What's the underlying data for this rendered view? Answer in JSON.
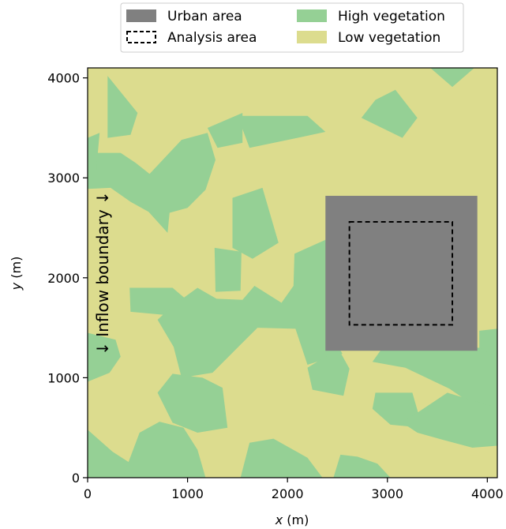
{
  "chart_data": {
    "type": "map",
    "xlabel_var": "x",
    "xlabel_unit": " (m)",
    "ylabel_var": "y",
    "ylabel_unit": " (m)",
    "xlim": [
      0,
      4100
    ],
    "ylim": [
      0,
      4100
    ],
    "xticks": [
      0,
      1000,
      2000,
      3000,
      4000
    ],
    "yticks": [
      0,
      1000,
      2000,
      3000,
      4000
    ],
    "legend": [
      {
        "label": "Urban area",
        "kind": "fill",
        "color": "#808080"
      },
      {
        "label": "High vegetation",
        "kind": "fill",
        "color": "#95d095"
      },
      {
        "label": "Analysis area",
        "kind": "dashed",
        "color": "#000000"
      },
      {
        "label": "Low vegetation",
        "kind": "fill",
        "color": "#dcdc8e"
      }
    ],
    "colors": {
      "low_vegetation": "#dcdc8e",
      "high_vegetation": "#95d095",
      "urban": "#808080"
    },
    "urban_area": {
      "x0": 2380,
      "x1": 3900,
      "y0": 1270,
      "y1": 2820
    },
    "analysis_area": {
      "x0": 2620,
      "x1": 3650,
      "y0": 1530,
      "y1": 2560
    },
    "annotation": "↓ Inflow boundary ↓",
    "high_vegetation_patches": [
      [
        [
          200,
          4020
        ],
        [
          500,
          3650
        ],
        [
          430,
          3430
        ],
        [
          200,
          3400
        ]
      ],
      [
        [
          0,
          3250
        ],
        [
          330,
          3250
        ],
        [
          480,
          3150
        ],
        [
          620,
          3040
        ],
        [
          940,
          3380
        ],
        [
          1200,
          3450
        ],
        [
          1280,
          3180
        ],
        [
          1180,
          2880
        ],
        [
          1000,
          2700
        ],
        [
          820,
          2650
        ],
        [
          800,
          2450
        ],
        [
          610,
          2660
        ],
        [
          430,
          2760
        ],
        [
          230,
          2900
        ],
        [
          0,
          2890
        ]
      ],
      [
        [
          1500,
          3620
        ],
        [
          2200,
          3620
        ],
        [
          2380,
          3460
        ],
        [
          2100,
          3400
        ],
        [
          1620,
          3300
        ]
      ],
      [
        [
          1200,
          3500
        ],
        [
          1550,
          3650
        ],
        [
          1550,
          3350
        ],
        [
          1300,
          3300
        ]
      ],
      [
        [
          2880,
          3780
        ],
        [
          3080,
          3880
        ],
        [
          3300,
          3600
        ],
        [
          3150,
          3400
        ],
        [
          2740,
          3600
        ]
      ],
      [
        [
          3430,
          4100
        ],
        [
          3870,
          4100
        ],
        [
          3650,
          3910
        ]
      ],
      [
        [
          0,
          3400
        ],
        [
          120,
          3450
        ],
        [
          80,
          3000
        ],
        [
          0,
          3080
        ]
      ],
      [
        [
          1450,
          2800
        ],
        [
          1750,
          2900
        ],
        [
          1910,
          2350
        ],
        [
          1650,
          2190
        ],
        [
          1450,
          2300
        ]
      ],
      [
        [
          1270,
          2300
        ],
        [
          1540,
          2260
        ],
        [
          1530,
          1870
        ],
        [
          1280,
          1860
        ]
      ],
      [
        [
          420,
          1900
        ],
        [
          850,
          1900
        ],
        [
          1050,
          1730
        ],
        [
          860,
          1620
        ],
        [
          430,
          1660
        ]
      ],
      [
        [
          850,
          1720
        ],
        [
          1100,
          1900
        ],
        [
          1290,
          1790
        ],
        [
          1550,
          1780
        ],
        [
          1670,
          1920
        ],
        [
          1940,
          1750
        ],
        [
          2060,
          1920
        ],
        [
          2070,
          2240
        ],
        [
          2380,
          2380
        ],
        [
          2420,
          1460
        ],
        [
          2550,
          1240
        ],
        [
          2200,
          1130
        ],
        [
          2080,
          1490
        ],
        [
          1700,
          1500
        ],
        [
          1500,
          1300
        ],
        [
          1250,
          1050
        ],
        [
          940,
          1000
        ],
        [
          860,
          1310
        ],
        [
          700,
          1580
        ]
      ],
      [
        [
          0,
          1450
        ],
        [
          280,
          1380
        ],
        [
          330,
          1210
        ],
        [
          220,
          1050
        ],
        [
          0,
          960
        ]
      ],
      [
        [
          2200,
          1100
        ],
        [
          2510,
          1290
        ],
        [
          2620,
          1090
        ],
        [
          2560,
          820
        ],
        [
          2250,
          880
        ]
      ],
      [
        [
          850,
          1040
        ],
        [
          1150,
          1000
        ],
        [
          1350,
          900
        ],
        [
          1400,
          500
        ],
        [
          1100,
          450
        ],
        [
          850,
          550
        ],
        [
          700,
          850
        ]
      ],
      [
        [
          3000,
          1370
        ],
        [
          3220,
          1470
        ],
        [
          3500,
          1390
        ],
        [
          3750,
          1290
        ],
        [
          3900,
          1300
        ],
        [
          4100,
          1290
        ],
        [
          4100,
          640
        ],
        [
          3900,
          700
        ],
        [
          3620,
          890
        ],
        [
          3180,
          1100
        ],
        [
          2850,
          1160
        ]
      ],
      [
        [
          2880,
          850
        ],
        [
          3250,
          850
        ],
        [
          3350,
          500
        ],
        [
          3030,
          530
        ],
        [
          2850,
          690
        ]
      ],
      [
        [
          3150,
          550
        ],
        [
          3600,
          850
        ],
        [
          4100,
          700
        ],
        [
          4100,
          320
        ],
        [
          3850,
          300
        ],
        [
          3550,
          380
        ],
        [
          3300,
          450
        ]
      ],
      [
        [
          3920,
          1300
        ],
        [
          4100,
          1200
        ],
        [
          4100,
          1490
        ],
        [
          3920,
          1470
        ]
      ],
      [
        [
          0,
          480
        ],
        [
          250,
          260
        ],
        [
          420,
          150
        ],
        [
          380,
          0
        ],
        [
          0,
          0
        ]
      ],
      [
        [
          520,
          450
        ],
        [
          720,
          560
        ],
        [
          960,
          500
        ],
        [
          1100,
          280
        ],
        [
          1180,
          0
        ],
        [
          350,
          0
        ]
      ],
      [
        [
          1620,
          350
        ],
        [
          1860,
          390
        ],
        [
          2200,
          200
        ],
        [
          2350,
          0
        ],
        [
          1530,
          0
        ]
      ],
      [
        [
          2530,
          230
        ],
        [
          2700,
          210
        ],
        [
          2900,
          140
        ],
        [
          3030,
          0
        ],
        [
          2460,
          0
        ]
      ]
    ]
  }
}
